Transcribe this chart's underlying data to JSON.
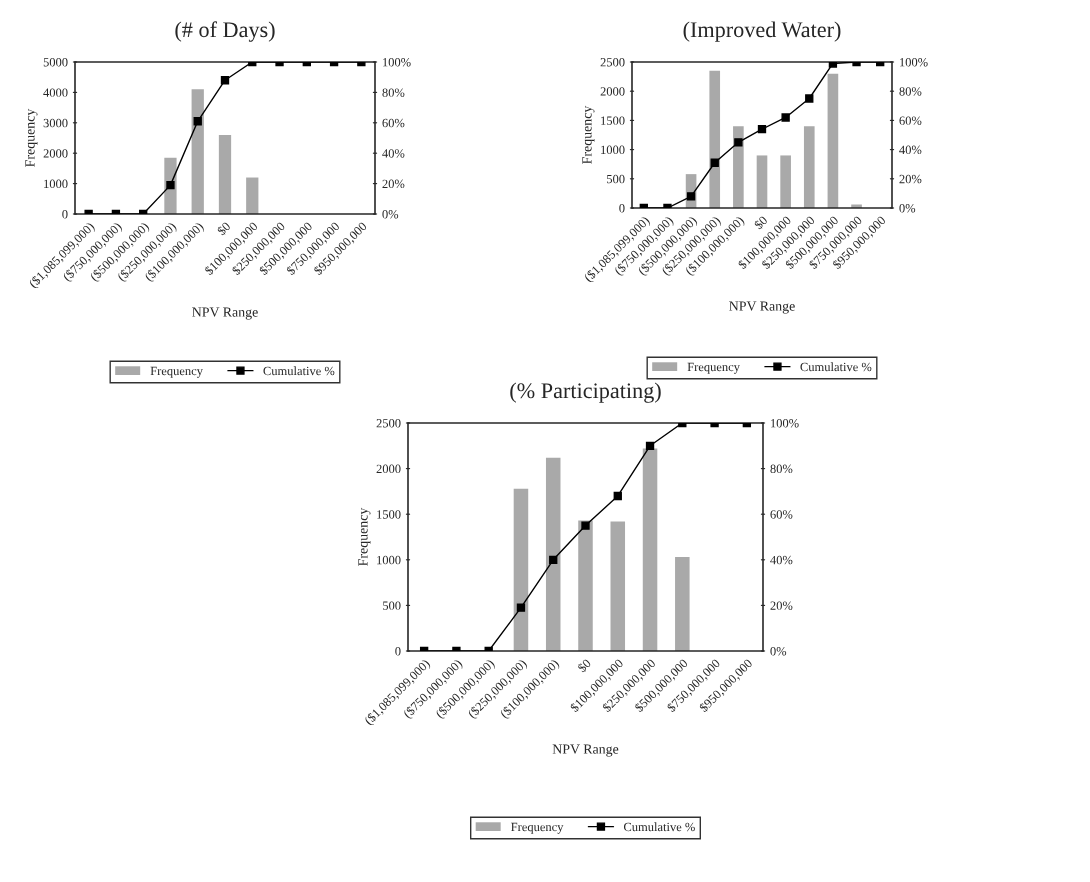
{
  "chart_data": [
    {
      "type": "bar",
      "title": "(# of Days)",
      "xlabel": "NPV Range",
      "ylabel": "Frequency",
      "categories": [
        "($1,085,099,000)",
        "($750,000,000)",
        "($500,000,000)",
        "($250,000,000)",
        "($100,000,000)",
        "$0",
        "$100,000,000",
        "$250,000,000",
        "$500,000,000",
        "$750,000,000",
        "$950,000,000"
      ],
      "series": [
        {
          "name": "Frequency",
          "color": "#a9a9a9",
          "values": [
            0,
            0,
            0,
            1850,
            4100,
            2600,
            1200,
            0,
            0,
            0,
            0
          ]
        },
        {
          "name": "Cumulative %",
          "type": "line",
          "axis": "y2",
          "color": "#000000",
          "values": [
            0,
            0,
            0,
            19,
            61,
            88,
            100,
            100,
            100,
            100,
            100
          ]
        }
      ],
      "ylim": [
        0,
        5000
      ],
      "yticks": [
        0,
        1000,
        2000,
        3000,
        4000,
        5000
      ],
      "y2lim": [
        0,
        100
      ],
      "y2ticks": [
        {
          "value": 0,
          "label": "0%"
        },
        {
          "value": 20,
          "label": "20%"
        },
        {
          "value": 40,
          "label": "40%"
        },
        {
          "value": 60,
          "label": "60%"
        },
        {
          "value": 80,
          "label": "80%"
        },
        {
          "value": 100,
          "label": "100%"
        }
      ],
      "marker": "square",
      "grid": false,
      "legend": "bottom"
    },
    {
      "type": "bar",
      "title": "(Improved Water)",
      "xlabel": "NPV Range",
      "ylabel": "Frequency",
      "categories": [
        "($1,085,099,000)",
        "($750,000,000)",
        "($500,000,000)",
        "($250,000,000)",
        "($100,000,000)",
        "$0",
        "$100,000,000",
        "$250,000,000",
        "$500,000,000",
        "$750,000,000",
        "$950,000,000"
      ],
      "series": [
        {
          "name": "Frequency",
          "color": "#a9a9a9",
          "values": [
            0,
            0,
            580,
            2350,
            1400,
            900,
            900,
            1400,
            2300,
            60,
            0
          ]
        },
        {
          "name": "Cumulative %",
          "type": "line",
          "axis": "y2",
          "color": "#000000",
          "values": [
            0,
            0,
            8,
            31,
            45,
            54,
            62,
            75,
            99,
            100,
            100
          ]
        }
      ],
      "ylim": [
        0,
        2500
      ],
      "yticks": [
        0,
        500,
        1000,
        1500,
        2000,
        2500
      ],
      "y2lim": [
        0,
        100
      ],
      "y2ticks": [
        {
          "value": 0,
          "label": "0%"
        },
        {
          "value": 20,
          "label": "20%"
        },
        {
          "value": 40,
          "label": "40%"
        },
        {
          "value": 60,
          "label": "60%"
        },
        {
          "value": 80,
          "label": "80%"
        },
        {
          "value": 100,
          "label": "100%"
        }
      ],
      "marker": "square",
      "grid": false,
      "legend": "bottom"
    },
    {
      "type": "bar",
      "title": "(% Participating)",
      "xlabel": "NPV Range",
      "ylabel": "Frequency",
      "categories": [
        "($1,085,099,000)",
        "($750,000,000)",
        "($500,000,000)",
        "($250,000,000)",
        "($100,000,000)",
        "$0",
        "$100,000,000",
        "$250,000,000",
        "$500,000,000",
        "$750,000,000",
        "$950,000,000"
      ],
      "series": [
        {
          "name": "Frequency",
          "color": "#a9a9a9",
          "values": [
            0,
            0,
            0,
            1780,
            2120,
            1430,
            1420,
            2220,
            1030,
            0,
            0
          ]
        },
        {
          "name": "Cumulative %",
          "type": "line",
          "axis": "y2",
          "color": "#000000",
          "values": [
            0,
            0,
            0,
            19,
            40,
            55,
            68,
            90,
            100,
            100,
            100
          ]
        }
      ],
      "ylim": [
        0,
        2500
      ],
      "yticks": [
        0,
        500,
        1000,
        1500,
        2000,
        2500
      ],
      "y2lim": [
        0,
        100
      ],
      "y2ticks": [
        {
          "value": 0,
          "label": "0%"
        },
        {
          "value": 20,
          "label": "20%"
        },
        {
          "value": 40,
          "label": "40%"
        },
        {
          "value": 60,
          "label": "60%"
        },
        {
          "value": 80,
          "label": "80%"
        },
        {
          "value": 100,
          "label": "100%"
        }
      ],
      "marker": "square",
      "grid": false,
      "legend": "bottom"
    }
  ]
}
